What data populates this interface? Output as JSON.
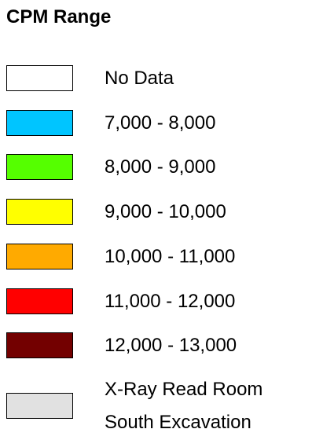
{
  "title": "CPM Range",
  "items": [
    {
      "lines": [
        "No Data"
      ],
      "color": "#ffffff"
    },
    {
      "lines": [
        "7,000 - 8,000"
      ],
      "color": "#00c5ff"
    },
    {
      "lines": [
        "8,000 - 9,000"
      ],
      "color": "#55ff00"
    },
    {
      "lines": [
        "9,000 - 10,000"
      ],
      "color": "#ffff00"
    },
    {
      "lines": [
        "10,000 - 11,000"
      ],
      "color": "#ffaa00"
    },
    {
      "lines": [
        "11,000 - 12,000"
      ],
      "color": "#ff0000"
    },
    {
      "lines": [
        "12,000 - 13,000"
      ],
      "color": "#730000"
    },
    {
      "lines": [
        "X-Ray Read Room",
        "South Excavation"
      ],
      "color": "#e1e1e1"
    }
  ]
}
